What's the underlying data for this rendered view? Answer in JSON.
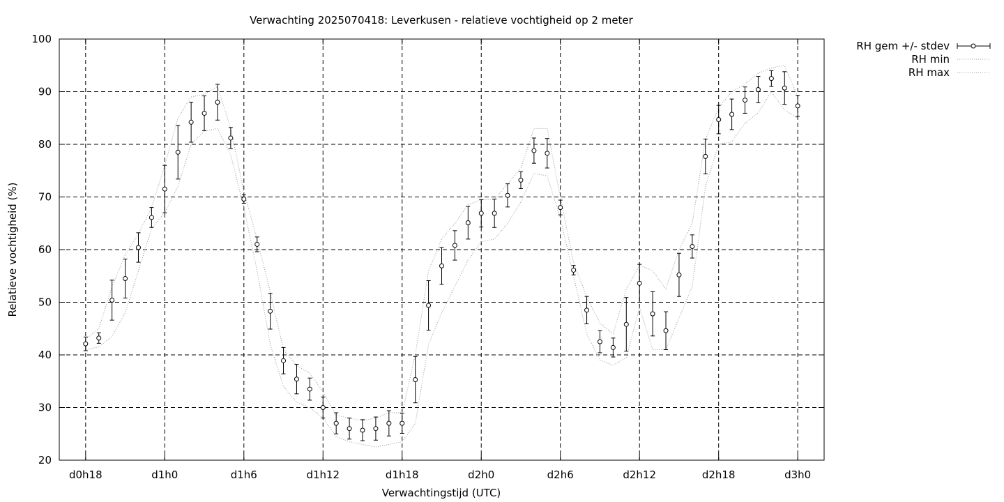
{
  "chart_data": {
    "type": "scatter",
    "title": "Verwachting 2025070418: Leverkusen - relatieve vochtigheid op 2 meter",
    "xlabel": "Verwachtingstijd (UTC)",
    "ylabel": "Relatieve vochtigheid (%)",
    "xlim": [
      -2,
      56
    ],
    "ylim": [
      20,
      100
    ],
    "grid": true,
    "legend_position": "top-right, outside plot",
    "x_unit": "forecast hour",
    "x_ticks": [
      {
        "x": 0,
        "label": "d0h18"
      },
      {
        "x": 6,
        "label": "d1h0"
      },
      {
        "x": 12,
        "label": "d1h6"
      },
      {
        "x": 18,
        "label": "d1h12"
      },
      {
        "x": 24,
        "label": "d1h18"
      },
      {
        "x": 30,
        "label": "d2h0"
      },
      {
        "x": 36,
        "label": "d2h6"
      },
      {
        "x": 42,
        "label": "d2h12"
      },
      {
        "x": 48,
        "label": "d2h18"
      },
      {
        "x": 54,
        "label": "d3h0"
      }
    ],
    "y_ticks": [
      20,
      30,
      40,
      50,
      60,
      70,
      80,
      90,
      100
    ],
    "series": [
      {
        "name": "RH gem +/- stdev",
        "style": "points with error bars",
        "color": "#000000",
        "x": [
          0,
          1,
          2,
          3,
          4,
          5,
          6,
          7,
          8,
          9,
          10,
          11,
          12,
          13,
          14,
          15,
          16,
          17,
          18,
          19,
          20,
          21,
          22,
          23,
          24,
          25,
          26,
          27,
          28,
          29,
          30,
          31,
          32,
          33,
          34,
          35,
          36,
          37,
          38,
          39,
          40,
          41,
          42,
          43,
          44,
          45,
          46,
          47,
          48,
          49,
          50,
          51,
          52,
          53,
          54
        ],
        "y": [
          42.1,
          43.2,
          50.4,
          54.5,
          60.4,
          66.1,
          71.5,
          78.5,
          84.2,
          85.9,
          88.0,
          81.2,
          69.6,
          61.0,
          48.3,
          38.9,
          35.4,
          33.5,
          30.0,
          27.0,
          26.0,
          25.7,
          26.0,
          27.0,
          27.0,
          35.3,
          49.4,
          56.9,
          60.8,
          65.1,
          66.9,
          66.9,
          70.3,
          73.2,
          78.8,
          78.3,
          68.0,
          56.1,
          48.5,
          42.5,
          41.4,
          45.8,
          53.6,
          47.8,
          44.6,
          55.2,
          60.6,
          77.7,
          84.7,
          85.7,
          88.4,
          90.4,
          92.5,
          90.7,
          87.3
        ],
        "stdev": [
          1.3,
          1.0,
          3.8,
          3.7,
          2.8,
          1.9,
          4.5,
          5.1,
          3.8,
          3.3,
          3.4,
          2.0,
          0.8,
          1.4,
          3.4,
          2.5,
          2.8,
          2.1,
          2.0,
          2.0,
          2.0,
          2.0,
          2.2,
          2.4,
          1.9,
          4.4,
          4.7,
          3.5,
          2.8,
          3.1,
          2.6,
          2.7,
          2.2,
          1.6,
          2.4,
          2.8,
          1.4,
          0.9,
          2.6,
          2.1,
          1.8,
          5.1,
          3.6,
          4.2,
          3.6,
          4.1,
          2.2,
          3.3,
          2.7,
          2.9,
          2.5,
          2.5,
          1.5,
          3.1,
          2.0
        ]
      },
      {
        "name": "RH min",
        "style": "dotted line",
        "color": "#999999",
        "x": [
          0,
          1,
          2,
          3,
          4,
          5,
          6,
          7,
          8,
          9,
          10,
          11,
          12,
          13,
          14,
          15,
          16,
          17,
          18,
          19,
          20,
          21,
          22,
          23,
          24,
          25,
          26,
          27,
          28,
          29,
          30,
          31,
          32,
          33,
          34,
          35,
          36,
          37,
          38,
          39,
          40,
          41,
          42,
          43,
          44,
          45,
          46,
          47,
          48,
          49,
          50,
          51,
          52,
          53,
          54
        ],
        "y": [
          41.0,
          41.5,
          43.5,
          48.0,
          56.0,
          64.0,
          67.0,
          72.0,
          80.0,
          82.5,
          83.0,
          78.0,
          68.0,
          56.0,
          42.0,
          34.0,
          31.0,
          30.0,
          28.0,
          24.5,
          23.5,
          23.0,
          22.5,
          23.0,
          23.5,
          27.0,
          42.0,
          48.0,
          53.0,
          58.0,
          61.5,
          62.0,
          65.0,
          69.0,
          74.5,
          74.0,
          66.0,
          55.0,
          44.0,
          39.0,
          38.0,
          39.5,
          49.0,
          41.0,
          41.0,
          47.0,
          53.0,
          72.0,
          80.0,
          80.5,
          84.0,
          86.0,
          90.0,
          86.5,
          85.0
        ]
      },
      {
        "name": "RH max",
        "style": "dotted line",
        "color": "#999999",
        "x": [
          0,
          1,
          2,
          3,
          4,
          5,
          6,
          7,
          8,
          9,
          10,
          11,
          12,
          13,
          14,
          15,
          16,
          17,
          18,
          19,
          20,
          21,
          22,
          23,
          24,
          25,
          26,
          27,
          28,
          29,
          30,
          31,
          32,
          33,
          34,
          35,
          36,
          37,
          38,
          39,
          40,
          41,
          42,
          43,
          44,
          45,
          46,
          47,
          48,
          49,
          50,
          51,
          52,
          53,
          54
        ],
        "y": [
          43.0,
          45.0,
          53.0,
          59.0,
          63.0,
          68.0,
          76.0,
          85.0,
          89.0,
          89.5,
          91.0,
          83.0,
          71.0,
          62.0,
          52.0,
          41.0,
          38.0,
          36.5,
          33.0,
          28.5,
          28.0,
          27.5,
          28.0,
          29.0,
          29.0,
          40.0,
          56.0,
          62.0,
          65.0,
          68.5,
          69.5,
          69.5,
          72.5,
          75.5,
          83.0,
          83.0,
          70.0,
          57.5,
          51.0,
          46.0,
          44.0,
          52.5,
          57.0,
          56.0,
          52.5,
          60.0,
          65.0,
          81.0,
          87.0,
          90.0,
          91.5,
          93.5,
          94.5,
          95.0,
          89.0
        ]
      }
    ]
  }
}
